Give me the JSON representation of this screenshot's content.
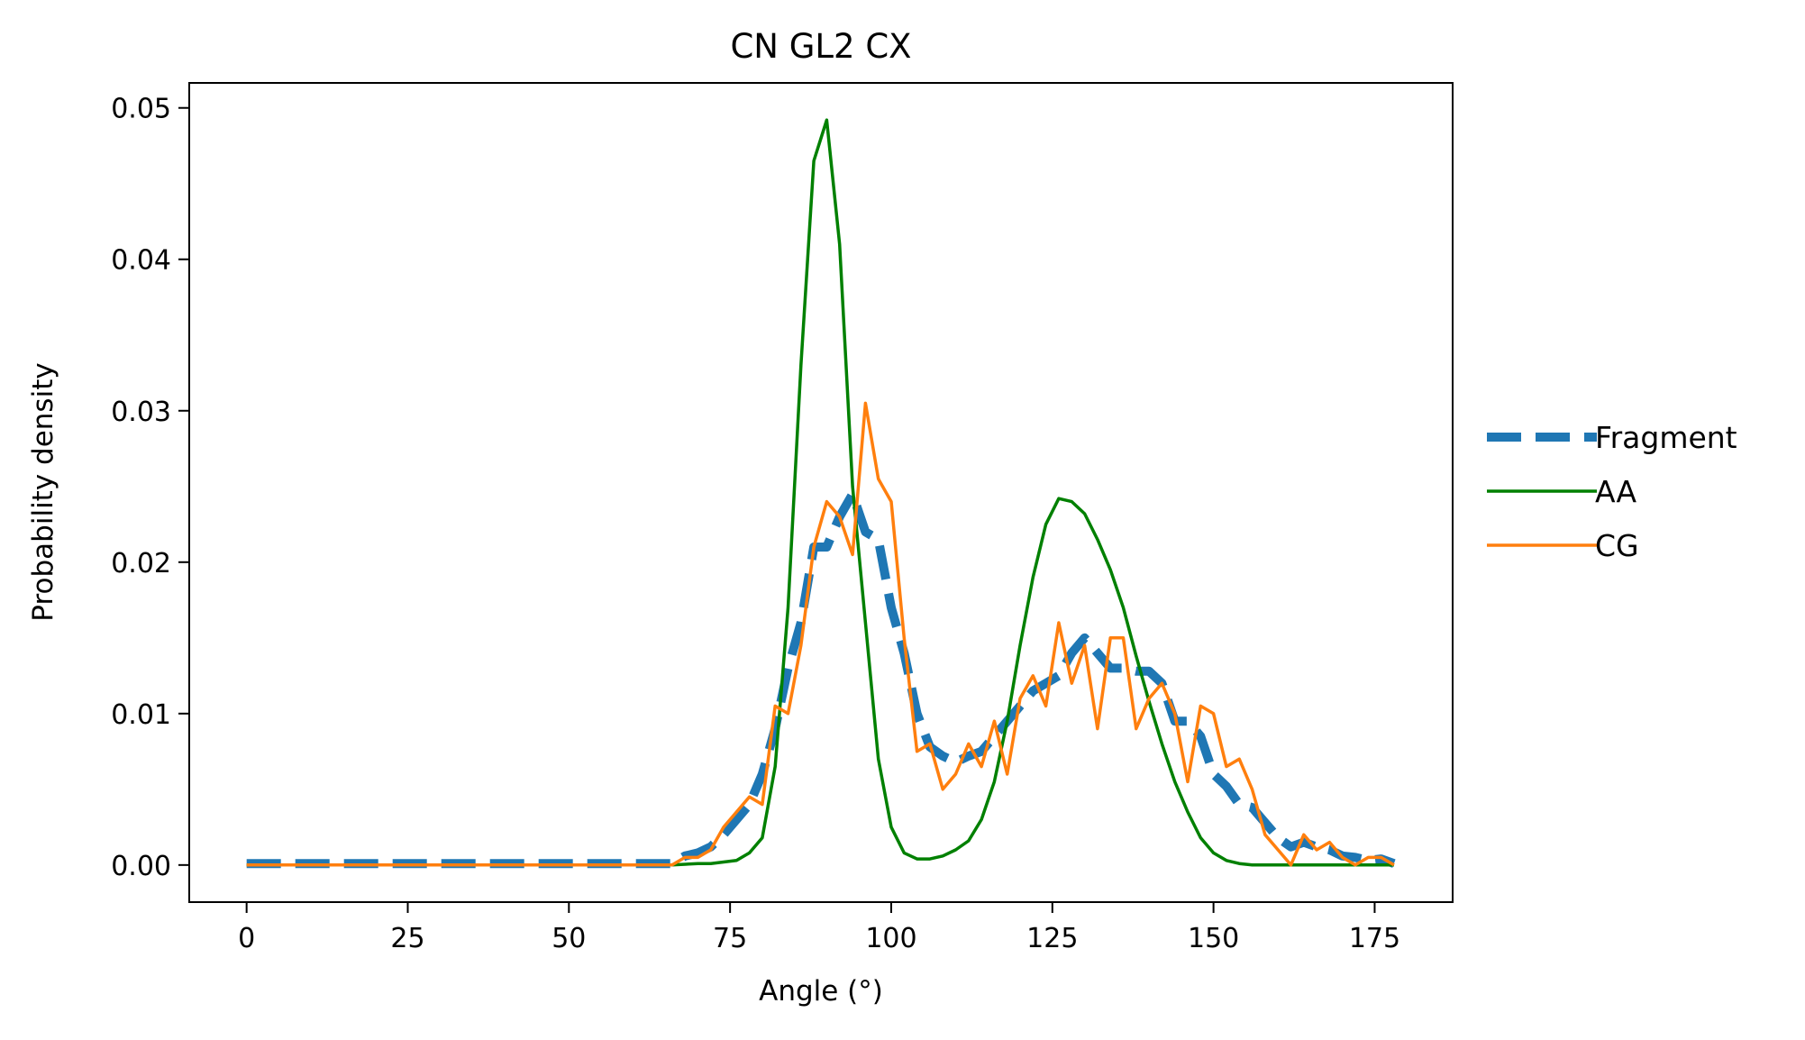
{
  "chart_data": {
    "type": "line",
    "title": "CN GL2 CX",
    "xlabel": "Angle (°)",
    "ylabel": "Probability density",
    "xlim": [
      -8.9,
      187.1
    ],
    "ylim": [
      -0.00245,
      0.05165
    ],
    "xticks": [
      0,
      25,
      50,
      75,
      100,
      125,
      150,
      175
    ],
    "yticks": [
      0.0,
      0.01,
      0.02,
      0.03,
      0.04,
      0.05
    ],
    "xtick_labels": [
      "0",
      "25",
      "50",
      "75",
      "100",
      "125",
      "150",
      "175"
    ],
    "ytick_labels": [
      "0.00",
      "0.01",
      "0.02",
      "0.03",
      "0.04",
      "0.05"
    ],
    "grid": false,
    "legend_position": "outside-right",
    "series": [
      {
        "name": "Fragment",
        "color": "#1f77b4",
        "style": "dashed",
        "x": [
          0,
          66,
          68,
          70,
          72,
          74,
          76,
          78,
          80,
          82,
          84,
          86,
          88,
          90,
          92,
          94,
          96,
          98,
          100,
          102,
          104,
          106,
          108,
          110,
          112,
          114,
          116,
          118,
          120,
          122,
          124,
          126,
          128,
          130,
          132,
          134,
          136,
          138,
          140,
          142,
          144,
          146,
          148,
          150,
          152,
          154,
          156,
          158,
          160,
          162,
          164,
          166,
          168,
          170,
          172,
          174,
          176,
          178
        ],
        "y": [
          0.0001,
          0.0001,
          0.0006,
          0.0008,
          0.0012,
          0.002,
          0.003,
          0.004,
          0.006,
          0.009,
          0.013,
          0.016,
          0.021,
          0.021,
          0.023,
          0.0245,
          0.022,
          0.0215,
          0.017,
          0.014,
          0.01,
          0.0078,
          0.0072,
          0.0068,
          0.0072,
          0.0075,
          0.0085,
          0.0095,
          0.0105,
          0.0115,
          0.012,
          0.0125,
          0.014,
          0.015,
          0.014,
          0.013,
          0.013,
          0.0128,
          0.0128,
          0.012,
          0.0095,
          0.0095,
          0.0085,
          0.006,
          0.0052,
          0.004,
          0.0038,
          0.0028,
          0.0018,
          0.0012,
          0.0015,
          0.0012,
          0.001,
          0.0006,
          0.0005,
          0.0003,
          0.0004,
          0.0001
        ]
      },
      {
        "name": "AA",
        "color": "#008000",
        "style": "solid",
        "x": [
          0,
          60,
          66,
          70,
          72,
          74,
          76,
          78,
          80,
          82,
          84,
          86,
          88,
          90,
          92,
          94,
          96,
          98,
          100,
          102,
          104,
          106,
          108,
          110,
          112,
          114,
          116,
          118,
          120,
          122,
          124,
          126,
          128,
          130,
          132,
          134,
          136,
          138,
          140,
          142,
          144,
          146,
          148,
          150,
          152,
          154,
          156,
          160,
          170,
          175,
          178
        ],
        "y": [
          0.0,
          0.0,
          0.0,
          0.0001,
          0.0001,
          0.0002,
          0.0003,
          0.0008,
          0.0018,
          0.0065,
          0.017,
          0.033,
          0.0465,
          0.0492,
          0.041,
          0.025,
          0.016,
          0.007,
          0.0025,
          0.0008,
          0.0004,
          0.0004,
          0.0006,
          0.001,
          0.0016,
          0.003,
          0.0055,
          0.0095,
          0.0145,
          0.019,
          0.0225,
          0.0242,
          0.024,
          0.0232,
          0.0215,
          0.0195,
          0.017,
          0.0138,
          0.0108,
          0.008,
          0.0055,
          0.0035,
          0.0018,
          0.0008,
          0.0003,
          0.0001,
          0.0,
          0.0,
          0.0,
          0.0,
          0.0
        ]
      },
      {
        "name": "CG",
        "color": "#ff7f0e",
        "style": "solid",
        "x": [
          0,
          66,
          68,
          70,
          72,
          74,
          76,
          78,
          80,
          82,
          84,
          86,
          88,
          90,
          92,
          94,
          96,
          98,
          100,
          102,
          104,
          106,
          108,
          110,
          112,
          114,
          116,
          118,
          120,
          122,
          124,
          126,
          128,
          130,
          132,
          134,
          136,
          138,
          140,
          142,
          144,
          146,
          148,
          150,
          152,
          154,
          156,
          158,
          160,
          162,
          164,
          166,
          168,
          170,
          172,
          174,
          176,
          178
        ],
        "y": [
          0.0,
          0.0,
          0.0005,
          0.0005,
          0.001,
          0.0025,
          0.0035,
          0.0045,
          0.004,
          0.0105,
          0.01,
          0.0145,
          0.021,
          0.024,
          0.023,
          0.0205,
          0.0305,
          0.0255,
          0.024,
          0.015,
          0.0075,
          0.008,
          0.005,
          0.006,
          0.008,
          0.0065,
          0.0095,
          0.006,
          0.011,
          0.0125,
          0.0105,
          0.016,
          0.012,
          0.0145,
          0.009,
          0.015,
          0.015,
          0.009,
          0.011,
          0.012,
          0.01,
          0.0055,
          0.0105,
          0.01,
          0.0065,
          0.007,
          0.005,
          0.002,
          0.001,
          0.0,
          0.002,
          0.001,
          0.0015,
          0.0005,
          0.0,
          0.0005,
          0.0005,
          0.0
        ]
      }
    ]
  }
}
